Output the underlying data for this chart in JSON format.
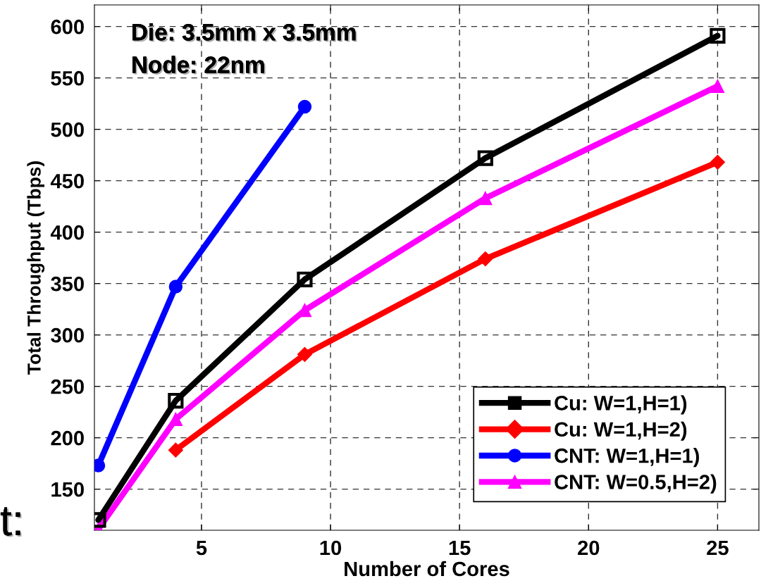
{
  "chart_data": {
    "type": "line",
    "xlabel": "Number of Cores",
    "ylabel": "Total Throughput (Tbps)",
    "x": [
      1,
      4,
      9,
      16,
      25
    ],
    "series": [
      {
        "name": "Cu: W=1,H=1)",
        "color": "#000000",
        "marker": "square",
        "values": [
          120,
          236,
          354,
          472,
          591
        ]
      },
      {
        "name": "Cu: W=1,H=2)",
        "color": "#ff0000",
        "marker": "diamond",
        "values": [
          null,
          188,
          281,
          374,
          468
        ]
      },
      {
        "name": "CNT: W=1,H=1)",
        "color": "#0000ff",
        "marker": "circle",
        "values": [
          173,
          347,
          522,
          null,
          null
        ]
      },
      {
        "name": "CNT: W=0.5,H=2)",
        "color": "#ff00ff",
        "marker": "triangle",
        "values": [
          111,
          218,
          324,
          433,
          542
        ]
      }
    ],
    "xlim": [
      0.85,
      26.6
    ],
    "ylim": [
      110,
      621
    ],
    "xticks": [
      5,
      10,
      15,
      20,
      25
    ],
    "yticks": [
      150,
      200,
      250,
      300,
      350,
      400,
      450,
      500,
      550,
      600
    ],
    "grid": true,
    "legend": "bottom right",
    "line_style": "solid",
    "annotations": [
      "Die: 3.5mm x 3.5mm",
      "Node: 22nm",
      "t:"
    ]
  }
}
